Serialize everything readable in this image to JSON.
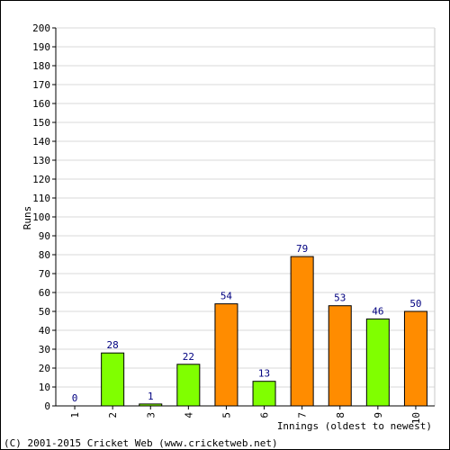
{
  "chart_data": {
    "type": "bar",
    "categories": [
      "1",
      "2",
      "3",
      "4",
      "5",
      "6",
      "7",
      "8",
      "9",
      "10"
    ],
    "values": [
      0,
      28,
      1,
      22,
      54,
      13,
      79,
      53,
      46,
      50
    ],
    "bar_colors": [
      "#80ff00",
      "#80ff00",
      "#80ff00",
      "#80ff00",
      "#ff8c00",
      "#80ff00",
      "#ff8c00",
      "#ff8c00",
      "#80ff00",
      "#ff8c00"
    ],
    "data_labels": [
      "0",
      "28",
      "1",
      "22",
      "54",
      "13",
      "79",
      "53",
      "46",
      "50"
    ],
    "xlabel": "Innings (oldest to newest)",
    "ylabel": "Runs",
    "ylim": [
      0,
      200
    ],
    "yticks": [
      0,
      10,
      20,
      30,
      40,
      50,
      60,
      70,
      80,
      90,
      100,
      110,
      120,
      130,
      140,
      150,
      160,
      170,
      180,
      190,
      200
    ],
    "grid": true
  },
  "footer": {
    "copyright": "(C) 2001-2015 Cricket Web (www.cricketweb.net)"
  }
}
